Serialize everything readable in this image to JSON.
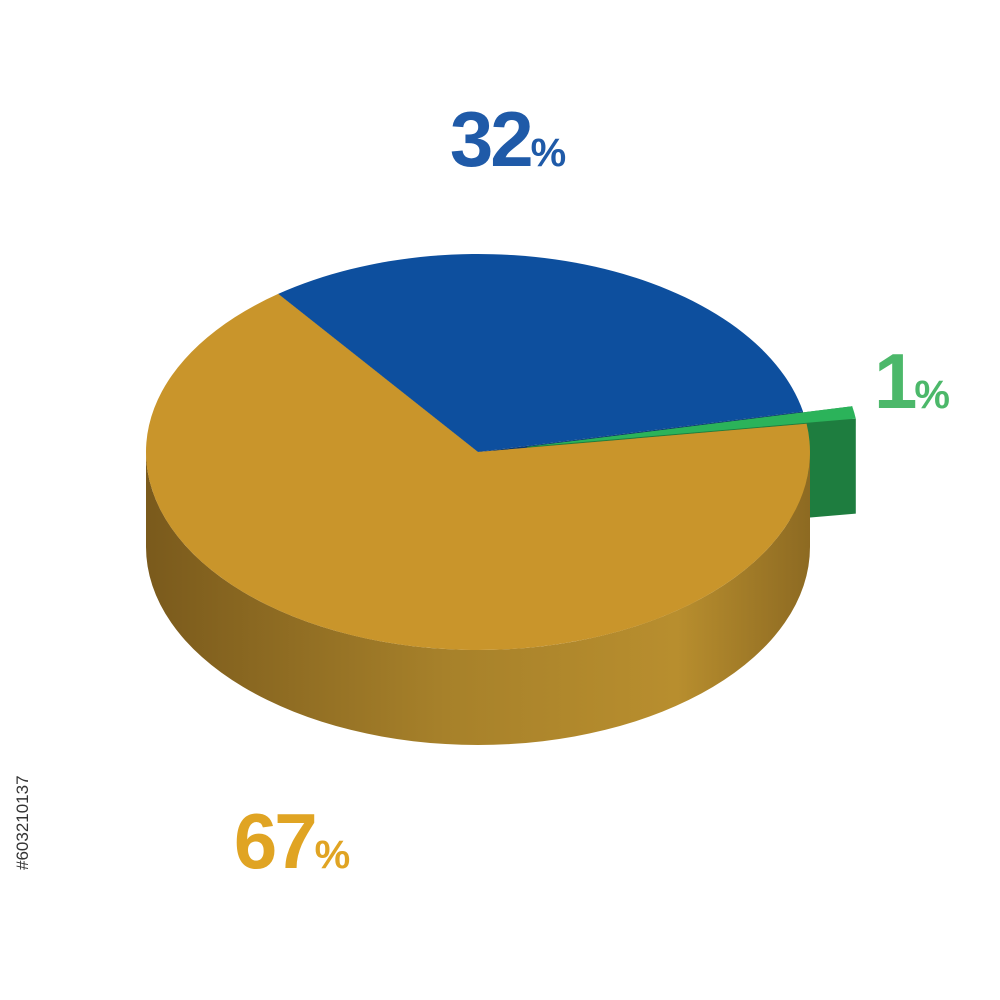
{
  "chart_data": {
    "type": "pie",
    "categories": [
      null,
      null,
      null
    ],
    "series": [
      {
        "values": [
          32,
          1,
          67
        ],
        "value_labels": [
          "32%",
          "1%",
          "67%"
        ],
        "colors": [
          "#0d4f9e",
          "#2bb35a",
          "#c9952b"
        ],
        "label_colors": [
          "#1f5aa8",
          "#4cb86a",
          "#e0a423"
        ]
      }
    ],
    "exploded": [
      false,
      true,
      false
    ]
  },
  "stock_id": "#603210137"
}
